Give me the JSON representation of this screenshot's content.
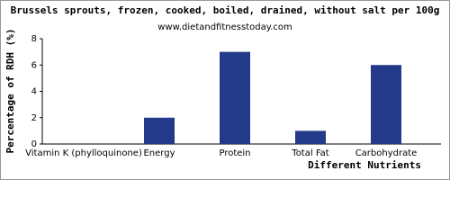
{
  "chart_data": {
    "type": "bar",
    "title": "Brussels sprouts, frozen, cooked, boiled, drained, without salt per 100g",
    "subtitle": "www.dietandfitnesstoday.com",
    "x_label": "Different Nutrients",
    "y_label": "Percentage of RDH (%)",
    "categories": [
      "Vitamin K (phylloquinone)",
      "Energy",
      "Protein",
      "Total Fat",
      "Carbohydrate"
    ],
    "values": [
      0,
      2,
      7,
      1,
      6
    ],
    "color": "#233a8a",
    "ylim": [
      0,
      8
    ],
    "yticks": [
      0,
      2,
      4,
      6,
      8
    ],
    "grid": false
  }
}
